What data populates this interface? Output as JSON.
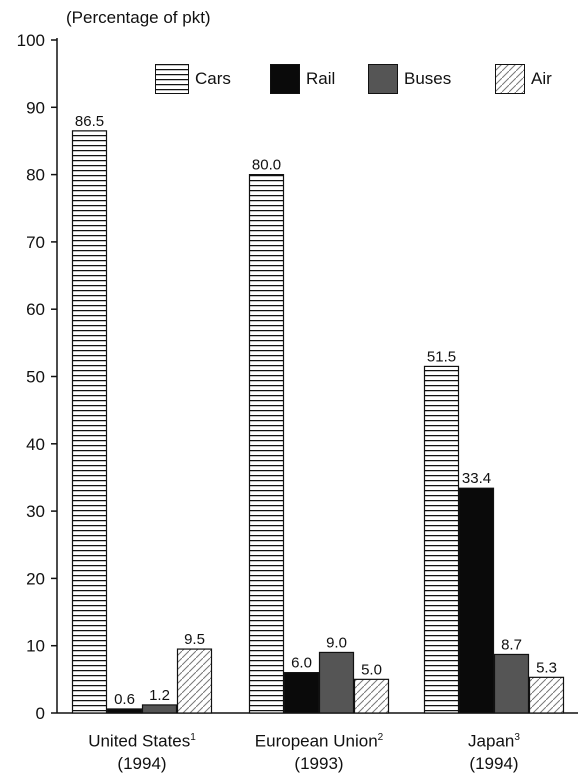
{
  "chart_data": {
    "type": "bar",
    "ylabel": "(Percentage of pkt)",
    "ylim": [
      0,
      100
    ],
    "yticks": [
      0,
      10,
      20,
      30,
      40,
      50,
      60,
      70,
      80,
      90,
      100
    ],
    "categories": [
      {
        "name": "United States",
        "sup": "1",
        "year": "(1994)"
      },
      {
        "name": "European Union",
        "sup": "2",
        "year": "(1993)"
      },
      {
        "name": "Japan",
        "sup": "3",
        "year": "(1994)"
      }
    ],
    "series": [
      {
        "name": "Cars",
        "values": [
          86.5,
          80.0,
          51.5
        ],
        "labels": [
          "86.5",
          "80.0",
          "51.5"
        ],
        "pattern": "horizontal-lines"
      },
      {
        "name": "Rail",
        "values": [
          0.6,
          6.0,
          33.4
        ],
        "labels": [
          "0.6",
          "6.0",
          "33.4"
        ],
        "pattern": "solid-black"
      },
      {
        "name": "Buses",
        "values": [
          1.2,
          9.0,
          8.7
        ],
        "labels": [
          "1.2",
          "9.0",
          "8.7"
        ],
        "pattern": "solid-gray"
      },
      {
        "name": "Air",
        "values": [
          9.5,
          5.0,
          5.3
        ],
        "labels": [
          "9.5",
          "5.0",
          "5.3"
        ],
        "pattern": "diagonal-hatch"
      }
    ],
    "legend_position": "top-right",
    "colors": {
      "rail": "#0a0a0a",
      "buses": "#555555",
      "axis": "#111111"
    }
  }
}
